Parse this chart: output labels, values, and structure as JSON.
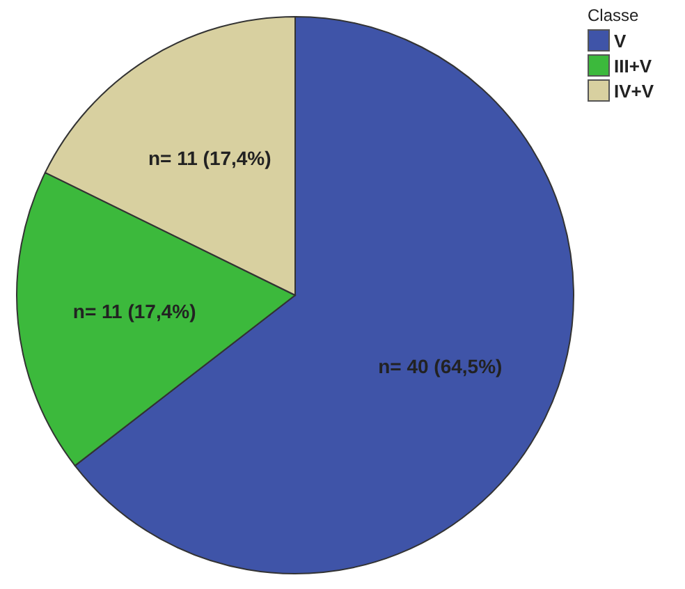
{
  "chart_data": {
    "type": "pie",
    "legend_title": "Classe",
    "legend": "top right",
    "categories": [
      "V",
      "III+V",
      "IV+V"
    ],
    "values": [
      40,
      11,
      11
    ],
    "value_labels": [
      "n= 40 (64,5%)",
      "n= 11 (17,4%)",
      "n= 11 (17,4%)"
    ],
    "colors": [
      "#3f54a8",
      "#3cb93c",
      "#d8d0a0"
    ]
  }
}
